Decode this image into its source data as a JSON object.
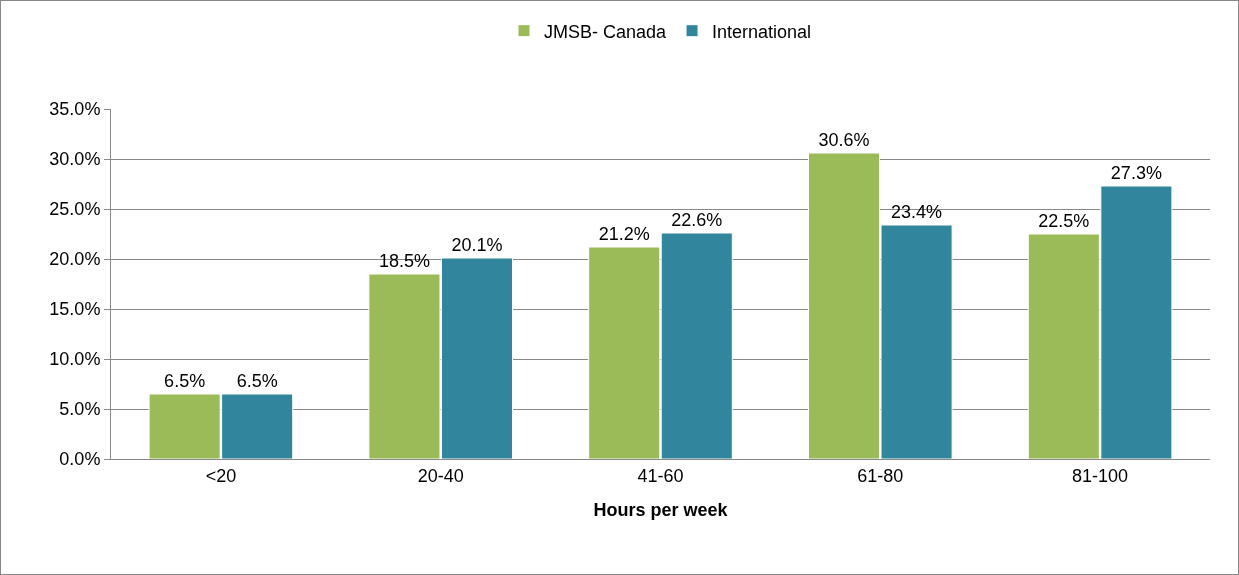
{
  "chart_data": {
    "type": "bar",
    "xlabel": "Hours per week",
    "categories": [
      "<20",
      "20-40",
      "41-60",
      "61-80",
      "81-100"
    ],
    "series": [
      {
        "name": "JMSB- Canada",
        "color": "#9bbb59",
        "values": [
          6.5,
          18.5,
          21.2,
          30.6,
          22.5
        ],
        "value_labels": [
          "6.5%",
          "18.5%",
          "21.2%",
          "30.6%",
          "22.5%"
        ]
      },
      {
        "name": "International",
        "color": "#31859c",
        "values": [
          6.5,
          20.1,
          22.6,
          23.4,
          27.3
        ],
        "value_labels": [
          "6.5%",
          "20.1%",
          "22.6%",
          "23.4%",
          "27.3%"
        ]
      }
    ],
    "ylim": [
      0,
      35
    ],
    "yticks": [
      {
        "value": 0,
        "label": "0.0%"
      },
      {
        "value": 5,
        "label": "5.0%"
      },
      {
        "value": 10,
        "label": "10.0%"
      },
      {
        "value": 15,
        "label": "15.0%"
      },
      {
        "value": 20,
        "label": "20.0%"
      },
      {
        "value": 25,
        "label": "25.0%"
      },
      {
        "value": 30,
        "label": "30.0%"
      },
      {
        "value": 35,
        "label": "35.0%"
      }
    ],
    "grid": "y",
    "legend": "top"
  }
}
